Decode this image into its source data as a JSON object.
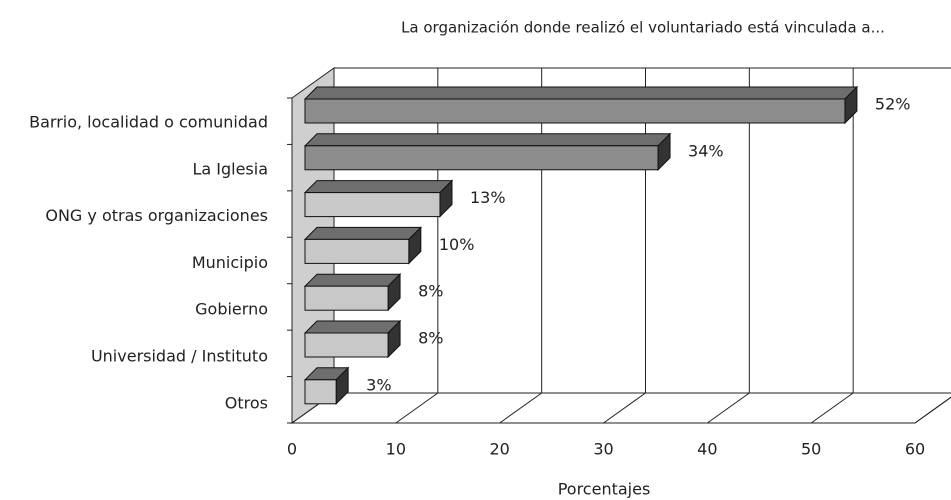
{
  "chart_data": {
    "type": "bar3d_horizontal",
    "title": "La organización donde realizó el voluntariado está vinculada a...",
    "x_label": "Porcentajes",
    "categories": [
      "Barrio, localidad o comunidad",
      "La Iglesia",
      "ONG y otras organizaciones",
      "Municipio",
      "Gobierno",
      "Universidad / Instituto",
      "Otros"
    ],
    "values": [
      52,
      34,
      13,
      10,
      8,
      8,
      3
    ],
    "value_labels": [
      "52%",
      "34%",
      "13%",
      "10%",
      "8%",
      "8%",
      "3%"
    ],
    "colors": [
      "#8c8c8c",
      "#8c8c8c",
      "#c8c8c8",
      "#c8c8c8",
      "#c8c8c8",
      "#c8c8c8",
      "#c8c8c8"
    ],
    "xlim": [
      0,
      60
    ],
    "xticks": [
      0,
      10,
      20,
      30,
      40,
      50,
      60
    ],
    "grid": true
  }
}
